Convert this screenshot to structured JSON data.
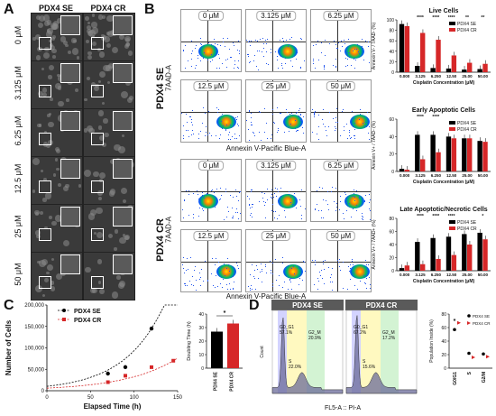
{
  "panels": {
    "A": {
      "letter": "A",
      "col1": "PDX4 SE",
      "col2": "PDX4 CR",
      "rows": [
        "0 μM",
        "3.125 μM",
        "6.25 μM",
        "12.5 μM",
        "25 μM",
        "50 μM"
      ]
    },
    "B": {
      "letter": "B",
      "group1": "PDX4 SE",
      "group2": "PDX4 CR",
      "ylab": "7AAD-A",
      "xlab": "Annexin V-Pacific Blue-A",
      "doses": [
        "0 μM",
        "3.125 μM",
        "6.25 μM",
        "12.5 μM",
        "25 μM",
        "50 μM"
      ]
    },
    "C": {
      "letter": "C"
    },
    "D": {
      "letter": "D",
      "title1": "PDX4 SE",
      "title2": "PDX4 CR",
      "xlab": "FL5-A :: PI-A",
      "ylab": "Count",
      "g1_se": "G0_G1\n57.1%",
      "s_se": "S\n22.0%",
      "g2_se": "G2_M\n20.9%",
      "g1_cr": "G0_G1\n67.2%",
      "s_cr": "S\n15.6%",
      "g2_cr": "G2_M\n17.2%"
    }
  },
  "bar_legend": {
    "se": "PDX4 SE",
    "cr": "PDX4 CR"
  },
  "colors": {
    "se": "#000000",
    "cr": "#d62728",
    "micro": "#3a3a3a"
  },
  "chart_data": [
    {
      "type": "bar",
      "title": "Live Cells",
      "ylabel": "Annexin V- / 7AAD- (%)",
      "xlabel": "Cisplatin Concentration (μM)",
      "categories": [
        "0.000",
        "3.125",
        "6.250",
        "12.50",
        "25.00",
        "50.00"
      ],
      "ylim": [
        0,
        100
      ],
      "yticks": [
        "0",
        "20",
        "40",
        "60",
        "80",
        "100"
      ],
      "series": [
        {
          "name": "PDX4 SE",
          "values": [
            92,
            12,
            8,
            7,
            5,
            6
          ]
        },
        {
          "name": "PDX4 CR",
          "values": [
            88,
            75,
            62,
            32,
            18,
            16
          ]
        }
      ],
      "sig": [
        "",
        "****",
        "****",
        "****",
        "**",
        "**"
      ]
    },
    {
      "type": "bar",
      "title": "Early Apoptotic Cells",
      "ylabel": "Annexin V+ / 7AAD- (%)",
      "xlabel": "Cisplatin Concentration (μM)",
      "categories": [
        "0.000",
        "3.125",
        "6.250",
        "12.50",
        "25.00",
        "50.00"
      ],
      "ylim": [
        0,
        60
      ],
      "yticks": [
        "0",
        "20",
        "40",
        "60"
      ],
      "series": [
        {
          "name": "PDX4 SE",
          "values": [
            3,
            42,
            42,
            40,
            38,
            35
          ]
        },
        {
          "name": "PDX4 CR",
          "values": [
            2,
            14,
            22,
            38,
            38,
            34
          ]
        }
      ],
      "sig": [
        "",
        "****",
        "****",
        "",
        "",
        ""
      ]
    },
    {
      "type": "bar",
      "title": "Late Apoptotic/Necrotic Cells",
      "ylabel": "Annexin V+ / 7AAD+ (%)",
      "xlabel": "Cisplatin Concentration (μM)",
      "categories": [
        "0.000",
        "3.125",
        "6.250",
        "12.50",
        "25.00",
        "50.00"
      ],
      "ylim": [
        0,
        80
      ],
      "yticks": [
        "0",
        "20",
        "40",
        "60",
        "80"
      ],
      "series": [
        {
          "name": "PDX4 SE",
          "values": [
            4,
            44,
            50,
            52,
            56,
            58
          ]
        },
        {
          "name": "PDX4 CR",
          "values": [
            8,
            10,
            18,
            24,
            40,
            48
          ]
        }
      ],
      "sig": [
        "",
        "****",
        "****",
        "****",
        "",
        "*"
      ]
    },
    {
      "type": "scatter",
      "ylabel": "Number of Cells",
      "xlabel": "Elapsed Time (h)",
      "xlim": [
        0,
        150
      ],
      "ylim": [
        0,
        200000
      ],
      "yticks": [
        "0",
        "50,000",
        "100,000",
        "150,000",
        "200,000"
      ],
      "xticks": [
        "0",
        "50",
        "100",
        "150"
      ],
      "series": [
        {
          "name": "PDX4 SE",
          "x": [
            70,
            90,
            120
          ],
          "y": [
            40000,
            55000,
            145000
          ]
        },
        {
          "name": "PDX4 CR",
          "x": [
            70,
            90,
            120,
            145
          ],
          "y": [
            20000,
            35000,
            55000,
            70000
          ]
        }
      ]
    },
    {
      "type": "bar",
      "ylabel": "Doubling Time (h)",
      "categories": [
        "PDX4 SE",
        "PDX4 CR"
      ],
      "ylim": [
        0,
        40
      ],
      "yticks": [
        "0",
        "10",
        "20",
        "30",
        "40"
      ],
      "values": [
        27,
        33
      ],
      "sig": "*"
    },
    {
      "type": "scatter",
      "ylabel": "Population Inside (%)",
      "categories": [
        "G0/G1",
        "S",
        "G2/M"
      ],
      "ylim": [
        0,
        80
      ],
      "yticks": [
        "0",
        "20",
        "40",
        "60",
        "80"
      ],
      "series": [
        {
          "name": "PDX4 SE",
          "values": [
            57,
            22,
            21
          ]
        },
        {
          "name": "PDX4 CR",
          "values": [
            67,
            16,
            17
          ]
        }
      ],
      "sig": "*"
    }
  ]
}
